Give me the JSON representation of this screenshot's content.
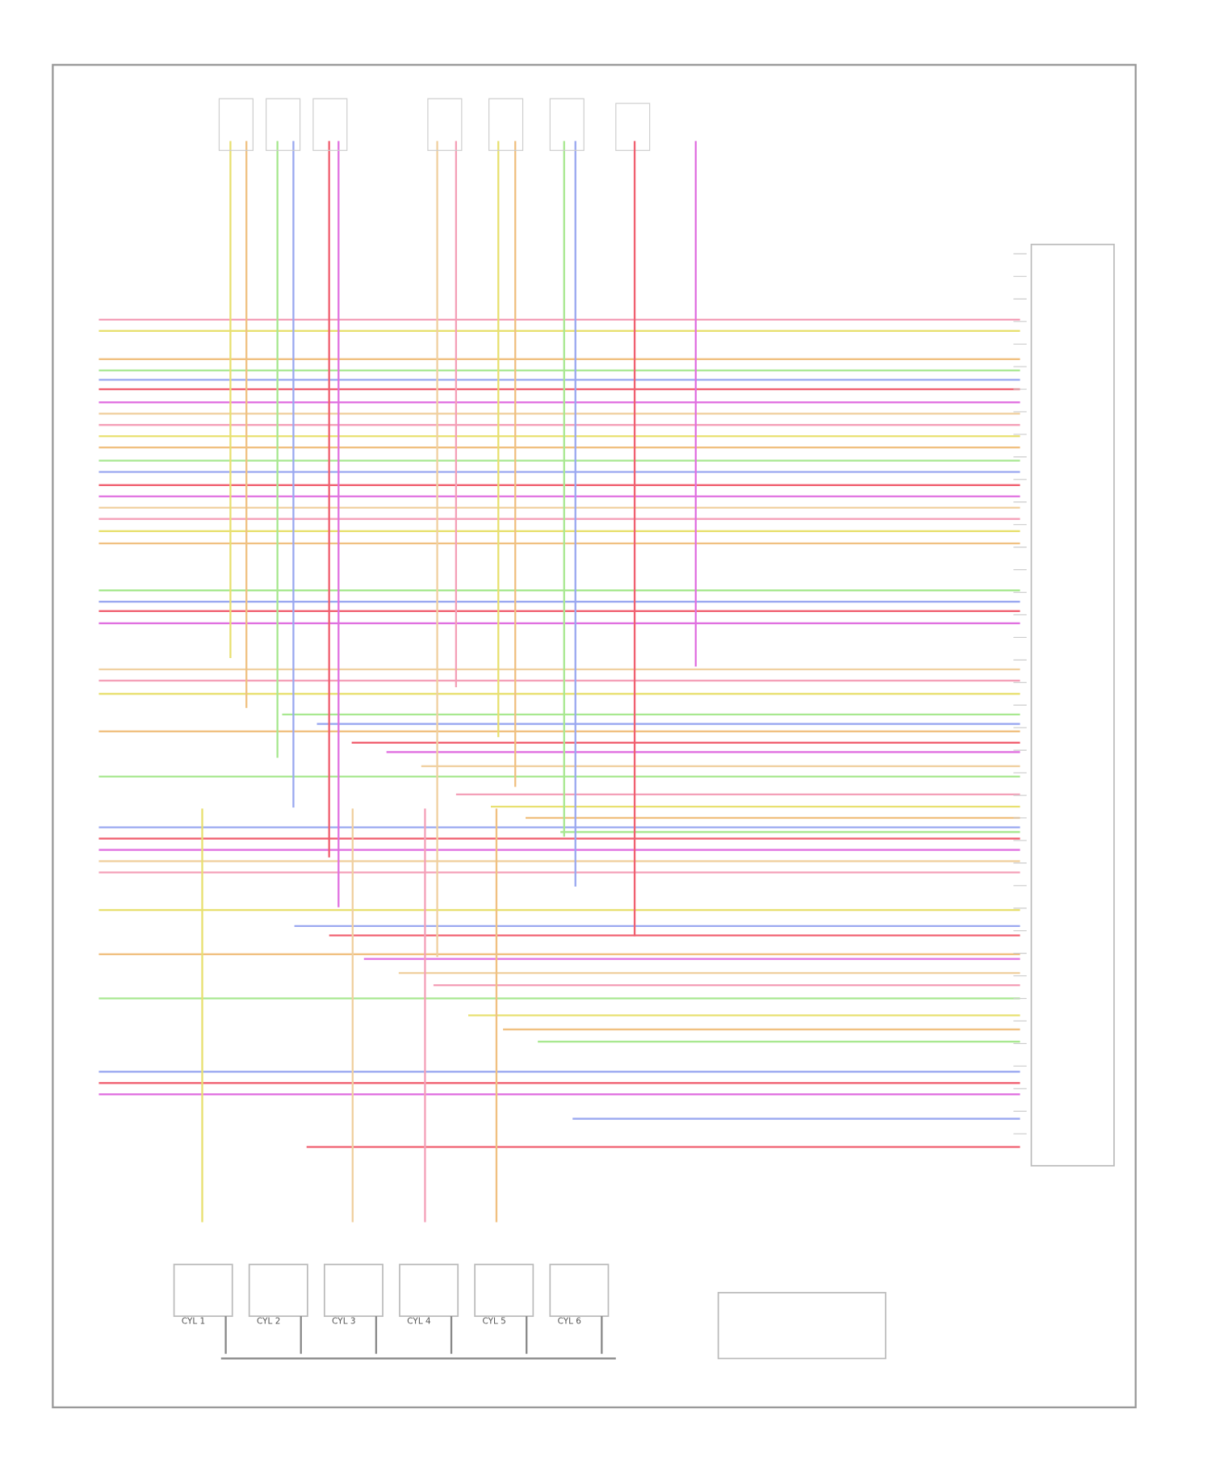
{
  "coils": [
    "CYL 1",
    "CYL 2",
    "CYL 3",
    "CYL 4",
    "CYL 5",
    "CYL 6"
  ]
}
